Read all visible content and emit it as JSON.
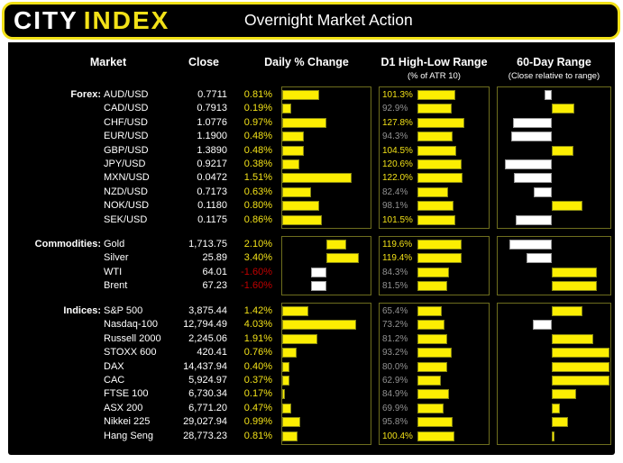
{
  "header": {
    "logo_city": "CITY",
    "logo_index": "INDEX",
    "title": "Overnight Market Action"
  },
  "columns": {
    "market": "Market",
    "close": "Close",
    "daily": "Daily % Change",
    "d1": "D1 High-Low Range",
    "d1_sub": "(% of ATR 10)",
    "range60": "60-Day Range",
    "range60_sub": "(Close relative to range)"
  },
  "colors": {
    "accent_yellow": "#f2e118",
    "bar_yellow": "#fcee02",
    "bar_white": "#ffffff",
    "negative_red": "#c00000",
    "dim_gray": "#919191",
    "panel_border": "#6e6e1e",
    "text_white": "#ffffff",
    "background": "#000000",
    "page_background": "#ffffff"
  },
  "chart_data": {
    "type": "table",
    "title": "Overnight Market Action",
    "columns": [
      "Market",
      "Close",
      "Daily % Change",
      "D1 High-Low Range (% of ATR 10)",
      "60-Day Range (Close relative to range)"
    ],
    "legend_note": "Daily % bars: yellow = positive, white = negative. ATR % text: yellow when >= 100%, gray when < 100%. 60-day bars: yellow = close in upper half of range (right of midpoint), white = lower half (left of midpoint); len = bar length in px from midpoint.",
    "sections": [
      {
        "label": "Forex:",
        "rows": [
          {
            "market": "AUD/USD",
            "close": "0.7711",
            "daily": "0.81%",
            "atr": "101.3%",
            "range60": {
              "side": "left",
              "len": 8
            }
          },
          {
            "market": "CAD/USD",
            "close": "0.7913",
            "daily": "0.19%",
            "atr": "92.9%",
            "range60": {
              "side": "right",
              "len": 25
            }
          },
          {
            "market": "CHF/USD",
            "close": "1.0776",
            "daily": "0.97%",
            "atr": "127.8%",
            "range60": {
              "side": "left",
              "len": 43
            }
          },
          {
            "market": "EUR/USD",
            "close": "1.1900",
            "daily": "0.48%",
            "atr": "94.3%",
            "range60": {
              "side": "left",
              "len": 45
            }
          },
          {
            "market": "GBP/USD",
            "close": "1.3890",
            "daily": "0.48%",
            "atr": "104.5%",
            "range60": {
              "side": "right",
              "len": 24
            }
          },
          {
            "market": "JPY/USD",
            "close": "0.9217",
            "daily": "0.38%",
            "atr": "120.6%",
            "range60": {
              "side": "left",
              "len": 52
            }
          },
          {
            "market": "MXN/USD",
            "close": "0.0472",
            "daily": "1.51%",
            "atr": "122.0%",
            "range60": {
              "side": "left",
              "len": 42
            }
          },
          {
            "market": "NZD/USD",
            "close": "0.7173",
            "daily": "0.63%",
            "atr": "82.4%",
            "range60": {
              "side": "left",
              "len": 20
            }
          },
          {
            "market": "NOK/USD",
            "close": "0.1180",
            "daily": "0.80%",
            "atr": "98.1%",
            "range60": {
              "side": "right",
              "len": 34
            }
          },
          {
            "market": "SEK/USD",
            "close": "0.1175",
            "daily": "0.86%",
            "atr": "101.5%",
            "range60": {
              "side": "left",
              "len": 40
            }
          }
        ]
      },
      {
        "label": "Commodities:",
        "rows": [
          {
            "market": "Gold",
            "close": "1,713.75",
            "daily": "2.10%",
            "atr": "119.6%",
            "range60": {
              "side": "left",
              "len": 47
            }
          },
          {
            "market": "Silver",
            "close": "25.89",
            "daily": "3.40%",
            "atr": "119.4%",
            "range60": {
              "side": "left",
              "len": 28
            }
          },
          {
            "market": "WTI",
            "close": "64.01",
            "daily": "-1.60%",
            "atr": "84.3%",
            "range60": {
              "side": "right",
              "len": 50
            }
          },
          {
            "market": "Brent",
            "close": "67.23",
            "daily": "-1.60%",
            "atr": "81.5%",
            "range60": {
              "side": "right",
              "len": 50
            }
          }
        ]
      },
      {
        "label": "Indices:",
        "rows": [
          {
            "market": "S&P 500",
            "close": "3,875.44",
            "daily": "1.42%",
            "atr": "65.4%",
            "range60": {
              "side": "right",
              "len": 34
            }
          },
          {
            "market": "Nasdaq-100",
            "close": "12,794.49",
            "daily": "4.03%",
            "atr": "73.2%",
            "range60": {
              "side": "left",
              "len": 21
            }
          },
          {
            "market": "Russell 2000",
            "close": "2,245.06",
            "daily": "1.91%",
            "atr": "81.2%",
            "range60": {
              "side": "right",
              "len": 46
            }
          },
          {
            "market": "STOXX 600",
            "close": "420.41",
            "daily": "0.76%",
            "atr": "93.2%",
            "range60": {
              "side": "right",
              "len": 64
            }
          },
          {
            "market": "DAX",
            "close": "14,437.94",
            "daily": "0.40%",
            "atr": "80.0%",
            "range60": {
              "side": "right",
              "len": 64
            }
          },
          {
            "market": "CAC",
            "close": "5,924.97",
            "daily": "0.37%",
            "atr": "62.9%",
            "range60": {
              "side": "right",
              "len": 64
            }
          },
          {
            "market": "FTSE 100",
            "close": "6,730.34",
            "daily": "0.17%",
            "atr": "84.9%",
            "range60": {
              "side": "right",
              "len": 27
            }
          },
          {
            "market": "ASX 200",
            "close": "6,771.20",
            "daily": "0.47%",
            "atr": "69.9%",
            "range60": {
              "side": "right",
              "len": 9
            }
          },
          {
            "market": "Nikkei 225",
            "close": "29,027.94",
            "daily": "0.99%",
            "atr": "95.8%",
            "range60": {
              "side": "right",
              "len": 18
            }
          },
          {
            "market": "Hang Seng",
            "close": "28,773.23",
            "daily": "0.81%",
            "atr": "100.4%",
            "range60": {
              "side": "right",
              "len": 3
            }
          }
        ]
      }
    ]
  }
}
